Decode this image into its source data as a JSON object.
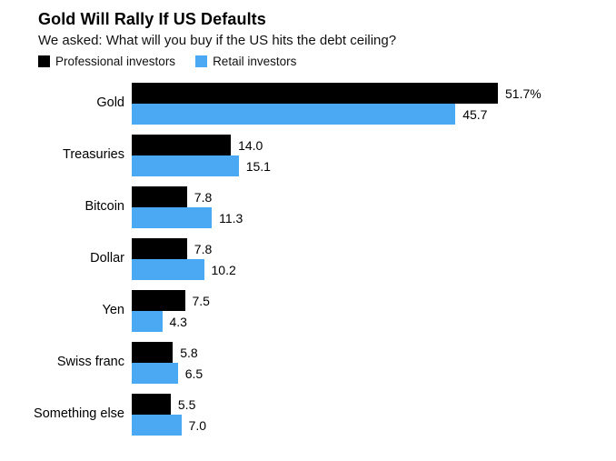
{
  "header": {
    "title": "Gold Will Rally If US Defaults",
    "subtitle": "We asked: What will you buy if the US hits the debt ceiling?"
  },
  "legend": {
    "items": [
      {
        "label": "Professional investors",
        "color": "#000000"
      },
      {
        "label": "Retail investors",
        "color": "#4AA9F2"
      }
    ]
  },
  "chart_data": {
    "type": "bar",
    "orientation": "horizontal",
    "title": "Gold Will Rally If US Defaults",
    "subtitle": "We asked: What will you buy if the US hits the debt ceiling?",
    "categories": [
      "Gold",
      "Treasuries",
      "Bitcoin",
      "Dollar",
      "Yen",
      "Swiss franc",
      "Something else"
    ],
    "series": [
      {
        "name": "Professional investors",
        "color": "#000000",
        "values": [
          51.7,
          14.0,
          7.8,
          7.8,
          7.5,
          5.8,
          5.5
        ],
        "labels": [
          "51.7%",
          "14.0",
          "7.8",
          "7.8",
          "7.5",
          "5.8",
          "5.5"
        ]
      },
      {
        "name": "Retail investors",
        "color": "#4AA9F2",
        "values": [
          45.7,
          15.1,
          11.3,
          10.2,
          4.3,
          6.5,
          7.0
        ],
        "labels": [
          "45.7",
          "15.1",
          "11.3",
          "10.2",
          "4.3",
          "6.5",
          "7.0"
        ]
      }
    ],
    "xlim": [
      0,
      51.7
    ],
    "grid": false,
    "axes_visible": false,
    "legend_position": "top-left",
    "value_labels": "end-of-bar",
    "unit": "percent"
  }
}
